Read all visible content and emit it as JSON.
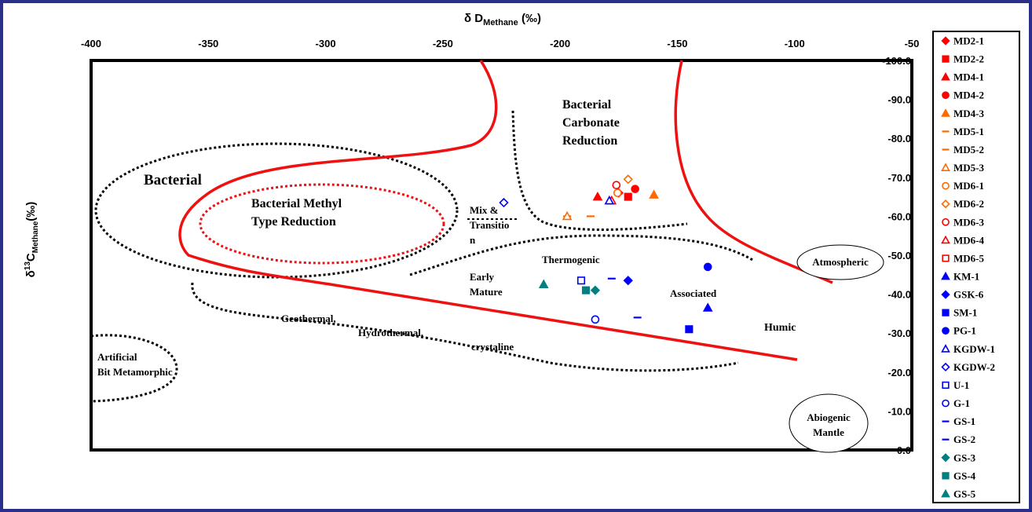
{
  "chart_data": {
    "type": "scatter",
    "title": "",
    "x_axis": {
      "label_main": "δ D",
      "label_sub": "Methane",
      "label_unit": " (‰)",
      "range": [
        -400,
        -50
      ],
      "ticks": [
        "-400",
        "-350",
        "-300",
        "-250",
        "-200",
        "-150",
        "-100",
        "-50"
      ],
      "tick_values": [
        -400,
        -350,
        -300,
        -250,
        -200,
        -150,
        -100,
        -50
      ],
      "position": "top"
    },
    "y_axis": {
      "label_main": "δ",
      "label_sup": "13",
      "label_mid": "C",
      "label_sub": "Methane",
      "label_unit": "(‰)",
      "range": [
        0,
        -100
      ],
      "ticks": [
        "-100.0",
        "-90.0",
        "-80.0",
        "-70.0",
        "-60.0",
        "-50.0",
        "-40.0",
        "-30.0",
        "-20.0",
        "-10.0",
        "0.0"
      ],
      "tick_values": [
        -100,
        -90,
        -80,
        -70,
        -60,
        -50,
        -40,
        -30,
        -20,
        -10,
        0
      ],
      "position": "right"
    },
    "grid": false,
    "legend_placement": "right",
    "series": [
      {
        "name": "MD2-1",
        "marker": "diamond",
        "filled": true,
        "color": "#ff0000",
        "points": [
          [
            -175,
            -66
          ]
        ]
      },
      {
        "name": "MD2-2",
        "marker": "square",
        "filled": true,
        "color": "#ff0000",
        "points": [
          [
            -171,
            -65
          ]
        ]
      },
      {
        "name": "MD4-1",
        "marker": "triangle",
        "filled": true,
        "color": "#ff0000",
        "points": [
          [
            -184,
            -65
          ]
        ]
      },
      {
        "name": "MD4-2",
        "marker": "circle",
        "filled": true,
        "color": "#ff0000",
        "points": [
          [
            -168,
            -67
          ]
        ]
      },
      {
        "name": "MD4-3",
        "marker": "triangle",
        "filled": true,
        "color": "#ff6a00",
        "points": [
          [
            -160,
            -65.5
          ]
        ]
      },
      {
        "name": "MD5-1",
        "marker": "dash",
        "filled": true,
        "color": "#ff6a00",
        "points": [
          [
            -197,
            -60
          ]
        ]
      },
      {
        "name": "MD5-2",
        "marker": "dash",
        "filled": true,
        "color": "#ff6a00",
        "points": [
          [
            -187,
            -60
          ]
        ]
      },
      {
        "name": "MD5-3",
        "marker": "triangle",
        "filled": false,
        "color": "#ff6a00",
        "points": [
          [
            -197,
            -60
          ]
        ]
      },
      {
        "name": "MD6-1",
        "marker": "circle",
        "filled": false,
        "color": "#ff6a00",
        "points": [
          [
            -175.5,
            -66
          ]
        ]
      },
      {
        "name": "MD6-2",
        "marker": "diamond",
        "filled": false,
        "color": "#ff6a00",
        "points": [
          [
            -171,
            -69.5
          ]
        ]
      },
      {
        "name": "MD6-3",
        "marker": "circle",
        "filled": false,
        "color": "#ff0000",
        "points": [
          [
            -176,
            -68
          ]
        ]
      },
      {
        "name": "MD6-4",
        "marker": "triangle",
        "filled": false,
        "color": "#ff0000",
        "points": [
          [
            -178,
            -64
          ]
        ]
      },
      {
        "name": "MD6-5",
        "marker": "square",
        "filled": false,
        "color": "#ff0000",
        "points": []
      },
      {
        "name": "KM-1",
        "marker": "triangle",
        "filled": true,
        "color": "#0000ff",
        "points": [
          [
            -137,
            -36.5
          ]
        ]
      },
      {
        "name": "GSK-6",
        "marker": "diamond",
        "filled": true,
        "color": "#0000ff",
        "points": [
          [
            -171,
            -43.5
          ]
        ]
      },
      {
        "name": "SM-1",
        "marker": "square",
        "filled": true,
        "color": "#0000ff",
        "points": [
          [
            -145,
            -31
          ]
        ]
      },
      {
        "name": "PG-1",
        "marker": "circle",
        "filled": true,
        "color": "#0000ff",
        "points": [
          [
            -137,
            -47
          ]
        ]
      },
      {
        "name": "KGDW-1",
        "marker": "triangle",
        "filled": false,
        "color": "#0000ff",
        "points": [
          [
            -179,
            -64
          ]
        ]
      },
      {
        "name": "KGDW-2",
        "marker": "diamond",
        "filled": false,
        "color": "#0000ff",
        "points": [
          [
            -224,
            -63.5
          ]
        ]
      },
      {
        "name": "U-1",
        "marker": "square",
        "filled": false,
        "color": "#0000ff",
        "points": [
          [
            -191,
            -43.5
          ]
        ]
      },
      {
        "name": "G-1",
        "marker": "circle",
        "filled": false,
        "color": "#0000ff",
        "points": [
          [
            -185,
            -33.5
          ]
        ]
      },
      {
        "name": "GS-1",
        "marker": "dash",
        "filled": true,
        "color": "#0000ff",
        "points": [
          [
            -178,
            -44
          ]
        ]
      },
      {
        "name": "GS-2",
        "marker": "dash",
        "filled": true,
        "color": "#0000ff",
        "points": [
          [
            -167,
            -34
          ]
        ]
      },
      {
        "name": "GS-3",
        "marker": "diamond",
        "filled": true,
        "color": "#008080",
        "points": [
          [
            -185,
            -41
          ]
        ]
      },
      {
        "name": "GS-4",
        "marker": "square",
        "filled": true,
        "color": "#008080",
        "points": [
          [
            -189,
            -41
          ]
        ]
      },
      {
        "name": "GS-5",
        "marker": "triangle",
        "filled": true,
        "color": "#008080",
        "points": [
          [
            -207,
            -42.5
          ]
        ]
      }
    ],
    "regions": {
      "bacterial": "Bacterial",
      "methyl_line1": "Bacterial Methyl",
      "methyl_line2": "Type Reduction",
      "carbonate_line1": "Bacterial",
      "carbonate_line2": "Carbonate",
      "carbonate_line3": "Reduction",
      "mix_line1": "Mix &",
      "mix_line2": "Transitio",
      "mix_line3": "n",
      "thermogenic": "Thermogenic",
      "early_line1": "Early",
      "early_line2": "Mature",
      "associated": "Associated",
      "humic": "Humic",
      "geo_line1": "Geothermal,",
      "geo_line2": "Hydrothermal,",
      "geo_line3": "crystaline",
      "artificial_line1": "Artificial",
      "artificial_line2": "Bit Metamorphic",
      "atmospheric": "Atmospheric",
      "abiogenic_line1": "Abiogenic",
      "abiogenic_line2": "Mantle"
    }
  }
}
